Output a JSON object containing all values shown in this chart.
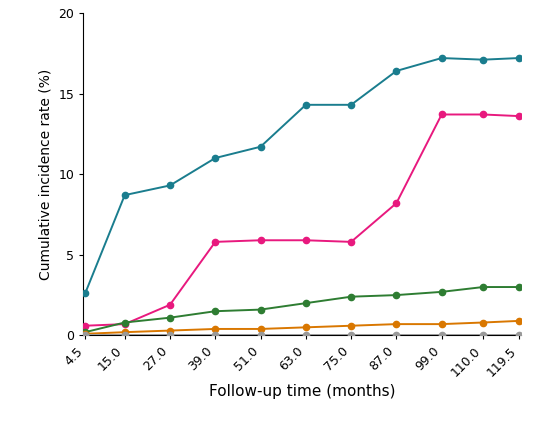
{
  "x": [
    4.5,
    15.0,
    27.0,
    39.0,
    51.0,
    63.0,
    75.0,
    87.0,
    99.0,
    110.0,
    119.5
  ],
  "series": [
    {
      "name": "teal",
      "color": "#1a7d8e",
      "values": [
        2.6,
        8.7,
        9.3,
        11.0,
        11.7,
        14.3,
        14.3,
        16.4,
        17.2,
        17.1,
        17.2
      ]
    },
    {
      "name": "pink",
      "color": "#e8197e",
      "values": [
        0.6,
        0.7,
        1.9,
        5.8,
        5.9,
        5.9,
        5.8,
        8.2,
        13.7,
        13.7,
        13.6
      ]
    },
    {
      "name": "green",
      "color": "#2e7d32",
      "values": [
        0.2,
        0.8,
        1.1,
        1.5,
        1.6,
        2.0,
        2.4,
        2.5,
        2.7,
        3.0,
        3.0
      ]
    },
    {
      "name": "orange",
      "color": "#d97700",
      "values": [
        0.1,
        0.2,
        0.3,
        0.4,
        0.4,
        0.5,
        0.6,
        0.7,
        0.7,
        0.8,
        0.9
      ]
    },
    {
      "name": "gray",
      "color": "#999999",
      "values": [
        0.02,
        0.02,
        0.02,
        0.02,
        0.02,
        0.02,
        0.02,
        0.02,
        0.02,
        0.02,
        0.02
      ]
    }
  ],
  "xlabel": "Follow-up time (months)",
  "ylabel": "Cumulative incidence rate (%)",
  "ylim": [
    0,
    20
  ],
  "yticks": [
    0,
    5,
    10,
    15,
    20
  ],
  "xticks": [
    4.5,
    15.0,
    27.0,
    39.0,
    51.0,
    63.0,
    75.0,
    87.0,
    99.0,
    110.0,
    119.5
  ],
  "xticklabels": [
    "4.5",
    "15.0",
    "27.0",
    "39.0",
    "51.0",
    "63.0",
    "75.0",
    "87.0",
    "99.0",
    "110.0",
    "119.5"
  ],
  "background_color": "#ffffff",
  "marker": "o",
  "markersize": 4.5,
  "linewidth": 1.4,
  "xlabel_fontsize": 11,
  "ylabel_fontsize": 10,
  "tick_fontsize": 9
}
